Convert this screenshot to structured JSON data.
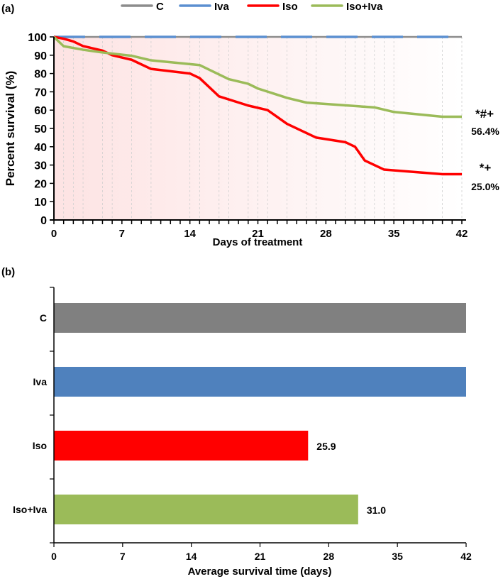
{
  "chart_data": [
    {
      "type": "line",
      "panel_label": "(a)",
      "xlabel": "Days of  treatment",
      "ylabel": "Percent survival (%)",
      "xlim": [
        0,
        42
      ],
      "ylim": [
        0,
        100
      ],
      "xticks": [
        0,
        7,
        14,
        21,
        28,
        35,
        42
      ],
      "yticks": [
        0,
        10,
        20,
        30,
        40,
        50,
        60,
        70,
        80,
        90,
        100
      ],
      "legend_position": "top",
      "series": [
        {
          "name": "C",
          "color": "#8c8c8c",
          "x": [
            0,
            42
          ],
          "y": [
            100,
            100
          ]
        },
        {
          "name": "Iva",
          "color": "#5b8fd0",
          "x": [
            0,
            42
          ],
          "y": [
            100,
            100
          ]
        },
        {
          "name": "Iso",
          "color": "#ff0000",
          "x": [
            0,
            1,
            2,
            3,
            5,
            6,
            8,
            10,
            14,
            15,
            17,
            20,
            22,
            24,
            27,
            30,
            31,
            32,
            34,
            40,
            42
          ],
          "y": [
            100,
            99,
            97.5,
            95,
            92.5,
            90,
            87.5,
            82.5,
            80,
            77.5,
            67.5,
            62.5,
            60,
            52.5,
            45,
            42.5,
            40,
            32.5,
            27.5,
            25,
            25
          ]
        },
        {
          "name": "Iso+Iva",
          "color": "#9bbb59",
          "x": [
            0,
            1,
            3,
            5,
            8,
            10,
            15,
            18,
            20,
            21,
            24,
            26,
            33,
            35,
            40,
            42
          ],
          "y": [
            100,
            94.9,
            93,
            91.5,
            89.7,
            87.2,
            84.6,
            76.9,
            74.4,
            71.8,
            66.7,
            64.1,
            61.5,
            59,
            56.4,
            56.4
          ]
        }
      ],
      "annotations": [
        {
          "series": "Iso+Iva",
          "symbol": "*#+",
          "value_label": "56.4%"
        },
        {
          "series": "Iso",
          "symbol": "*+",
          "value_label": "25.0%"
        }
      ]
    },
    {
      "type": "bar",
      "orientation": "horizontal",
      "panel_label": "(b)",
      "xlabel": "Average survival time (days)",
      "ylabel": "",
      "xlim": [
        0,
        42
      ],
      "xticks": [
        0,
        7,
        14,
        21,
        28,
        35,
        42
      ],
      "categories": [
        "C",
        "Iva",
        "Iso",
        "Iso+Iva"
      ],
      "values": [
        42,
        42,
        25.9,
        31.0
      ],
      "data_labels": [
        "",
        "",
        "25.9",
        "31.0"
      ],
      "colors": [
        "#808080",
        "#4f81bd",
        "#ff0000",
        "#9bbb59"
      ]
    }
  ]
}
